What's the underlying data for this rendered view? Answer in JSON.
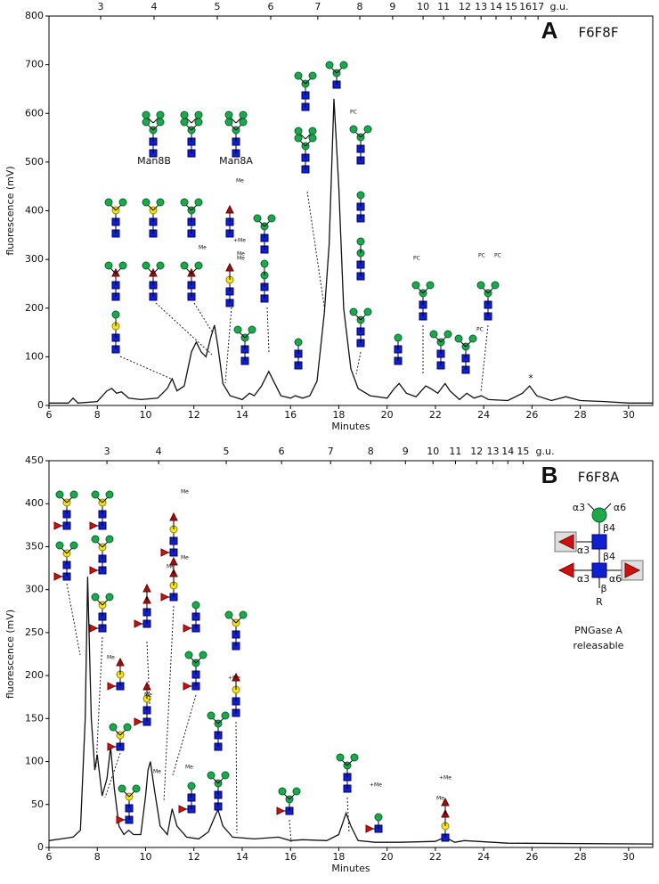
{
  "chart_data": [
    {
      "type": "line",
      "panel": "A",
      "title": "F6F8F",
      "x_label": "Minutes",
      "y_label": "fluorescence (mV)",
      "top_axis_label": "g.u.",
      "xlim": [
        6,
        31
      ],
      "xticks": [
        6,
        8,
        10,
        12,
        14,
        16,
        18,
        20,
        22,
        24,
        26,
        28,
        30
      ],
      "ylim": [
        0,
        800
      ],
      "yticks": [
        0,
        100,
        200,
        300,
        400,
        500,
        600,
        700,
        800
      ],
      "gu_ticks": [
        {
          "gu": 3,
          "minutes": 8.14
        },
        {
          "gu": 4,
          "minutes": 10.35
        },
        {
          "gu": 5,
          "minutes": 12.97
        },
        {
          "gu": 6,
          "minutes": 15.18
        },
        {
          "gu": 7,
          "minutes": 17.13
        },
        {
          "gu": 8,
          "minutes": 18.87
        },
        {
          "gu": 9,
          "minutes": 20.23
        },
        {
          "gu": 10,
          "minutes": 21.49
        },
        {
          "gu": 11,
          "minutes": 22.34
        },
        {
          "gu": 12,
          "minutes": 23.22
        },
        {
          "gu": 13,
          "minutes": 23.89
        },
        {
          "gu": 14,
          "minutes": 24.51
        },
        {
          "gu": 15,
          "minutes": 25.14
        },
        {
          "gu": 16,
          "minutes": 25.73
        },
        {
          "gu": 17,
          "minutes": 26.25
        }
      ],
      "color": "#111111",
      "x": [
        6,
        6.8,
        7.0,
        7.2,
        8.0,
        8.4,
        8.6,
        8.8,
        9.0,
        9.3,
        9.8,
        10.5,
        10.9,
        11.1,
        11.3,
        11.6,
        11.9,
        12.1,
        12.3,
        12.5,
        12.7,
        12.85,
        13.0,
        13.2,
        13.5,
        14.0,
        14.3,
        14.5,
        14.8,
        15.1,
        15.3,
        15.6,
        16.0,
        16.2,
        16.5,
        16.8,
        17.1,
        17.4,
        17.6,
        17.8,
        18.0,
        18.2,
        18.5,
        18.8,
        19.3,
        20.0,
        20.3,
        20.5,
        20.8,
        21.2,
        21.6,
        21.8,
        22.1,
        22.4,
        22.6,
        23.0,
        23.3,
        23.6,
        23.9,
        24.2,
        25.0,
        25.6,
        25.9,
        26.2,
        26.8,
        27.4,
        28,
        29,
        30,
        31
      ],
      "values": [
        5,
        5,
        15,
        5,
        8,
        30,
        35,
        25,
        28,
        15,
        12,
        15,
        35,
        55,
        30,
        40,
        110,
        130,
        110,
        100,
        140,
        165,
        120,
        45,
        20,
        12,
        25,
        20,
        40,
        70,
        50,
        20,
        15,
        20,
        15,
        20,
        50,
        190,
        330,
        630,
        450,
        200,
        75,
        35,
        20,
        15,
        35,
        45,
        25,
        18,
        40,
        35,
        25,
        45,
        30,
        12,
        25,
        15,
        20,
        12,
        10,
        25,
        40,
        20,
        10,
        18,
        10,
        8,
        5,
        5
      ],
      "annotations": [
        "Man8B",
        "Man8A",
        "*"
      ],
      "glycan_tags": [
        "Me",
        "Me",
        "Me",
        "+Me",
        "Me",
        "PC",
        "PC",
        "PC",
        "PC",
        "PC"
      ]
    },
    {
      "type": "line",
      "panel": "B",
      "title": "F6F8A",
      "x_label": "Minutes",
      "y_label": "fluorescence (mV)",
      "top_axis_label": "g.u.",
      "xlim": [
        6,
        31
      ],
      "xticks": [
        6,
        8,
        10,
        12,
        14,
        16,
        18,
        20,
        22,
        24,
        26,
        28,
        30
      ],
      "ylim": [
        0,
        450
      ],
      "yticks": [
        0,
        50,
        100,
        150,
        200,
        250,
        300,
        350,
        400,
        450
      ],
      "gu_ticks": [
        {
          "gu": 3,
          "minutes": 8.4
        },
        {
          "gu": 4,
          "minutes": 10.54
        },
        {
          "gu": 5,
          "minutes": 13.34
        },
        {
          "gu": 6,
          "minutes": 15.63
        },
        {
          "gu": 7,
          "minutes": 17.66
        },
        {
          "gu": 8,
          "minutes": 19.32
        },
        {
          "gu": 9,
          "minutes": 20.76
        },
        {
          "gu": 10,
          "minutes": 21.9
        },
        {
          "gu": 11,
          "minutes": 22.83
        },
        {
          "gu": 12,
          "minutes": 23.71
        },
        {
          "gu": 13,
          "minutes": 24.38
        },
        {
          "gu": 14,
          "minutes": 25.0
        },
        {
          "gu": 15,
          "minutes": 25.63
        }
      ],
      "color": "#111111",
      "x": [
        6,
        6.5,
        7.0,
        7.3,
        7.5,
        7.6,
        7.75,
        7.9,
        8.0,
        8.2,
        8.4,
        8.55,
        8.7,
        8.9,
        9.1,
        9.3,
        9.5,
        9.8,
        10.0,
        10.1,
        10.2,
        10.35,
        10.6,
        10.9,
        11.0,
        11.1,
        11.3,
        11.7,
        12.2,
        12.6,
        12.9,
        13.0,
        13.2,
        13.6,
        14.5,
        15.5,
        16.0,
        16.5,
        17.5,
        18.0,
        18.3,
        18.5,
        18.8,
        19.5,
        20.5,
        22,
        22.4,
        22.8,
        23.2,
        25,
        31
      ],
      "values": [
        8,
        10,
        12,
        20,
        150,
        315,
        150,
        90,
        108,
        60,
        80,
        117,
        70,
        25,
        15,
        20,
        15,
        15,
        60,
        90,
        100,
        70,
        25,
        15,
        30,
        45,
        25,
        12,
        10,
        18,
        38,
        44,
        25,
        12,
        10,
        12,
        8,
        9,
        8,
        15,
        40,
        25,
        8,
        6,
        6,
        7,
        12,
        6,
        8,
        5,
        4
      ],
      "linkages": [
        "α3",
        "α6",
        "β4",
        "α3",
        "β4",
        "α3",
        "α6",
        "β",
        "R"
      ],
      "note": [
        "PNGase A",
        "releasable"
      ],
      "glycan_tags": [
        "Me",
        "Me",
        "Me",
        "Me",
        "Me",
        "Me",
        "+Me",
        "Me",
        "+Me",
        "+Me",
        "Me"
      ]
    }
  ]
}
